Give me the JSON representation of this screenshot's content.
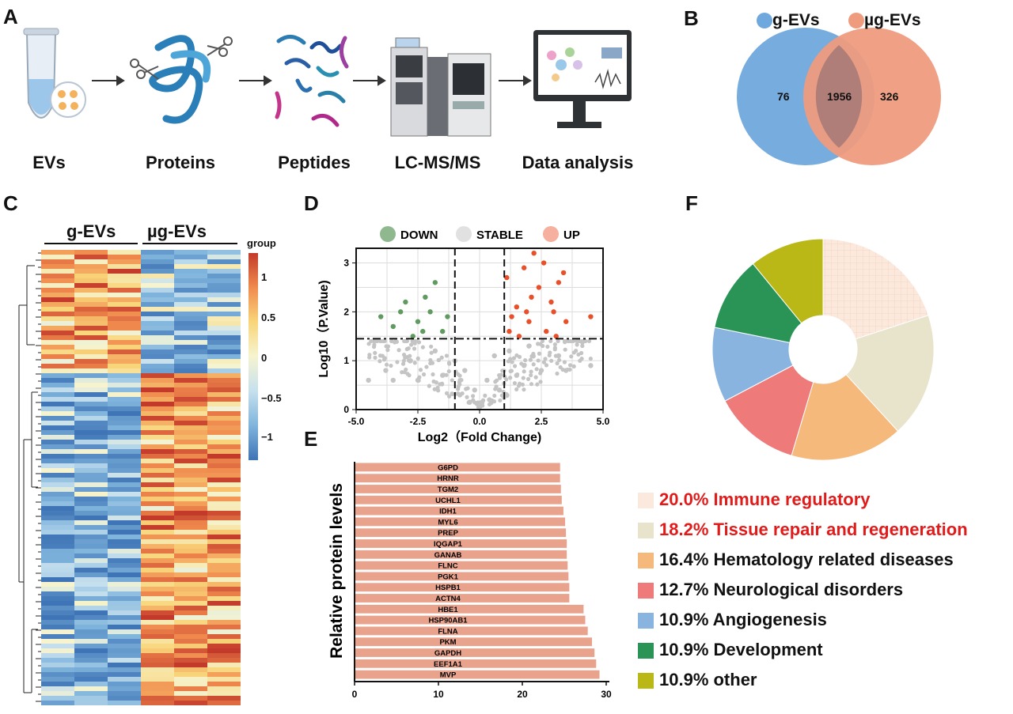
{
  "panels": {
    "A": "A",
    "B": "B",
    "C": "C",
    "D": "D",
    "E": "E",
    "F": "F"
  },
  "workflow": {
    "steps": [
      "EVs",
      "Proteins",
      "Peptides",
      "LC-MS/MS",
      "Data analysis"
    ]
  },
  "venn": {
    "legend": [
      "g-EVs",
      "µg-EVs"
    ],
    "left_only": "76",
    "overlap": "1956",
    "right_only": "326",
    "colors": {
      "left": "#6fa8dc",
      "right": "#ee9b7e",
      "overlap": "#b07e78"
    }
  },
  "heatmap": {
    "groups": [
      "g-EVs",
      "µg-EVs"
    ],
    "scale_title": "group",
    "scale_ticks": [
      "1",
      "0.5",
      "0",
      "−0.5",
      "−1"
    ]
  },
  "chart_data": [
    {
      "type": "scatter",
      "panel": "D",
      "xlabel": "Log2（Fold Change)",
      "ylabel": "Log10（P.Value)",
      "xlim": [
        -5.0,
        5.0
      ],
      "ylim": [
        0,
        3.3
      ],
      "xticks": [
        "-5.0",
        "-2.5",
        "0.0",
        "2.5",
        "5.0"
      ],
      "yticks": [
        "0",
        "1",
        "2",
        "3"
      ],
      "legend": [
        "DOWN",
        "STABLE",
        "UP"
      ],
      "colors": {
        "DOWN": "#5f9a5f",
        "STABLE": "#c4c4c4",
        "UP": "#e8502a"
      },
      "thresholds": {
        "x": [
          -1.0,
          1.0
        ],
        "y": 1.45
      },
      "series": [
        {
          "name": "UP",
          "points": [
            [
              1.2,
              1.6
            ],
            [
              1.5,
              2.1
            ],
            [
              2.0,
              1.8
            ],
            [
              2.4,
              2.5
            ],
            [
              1.8,
              2.9
            ],
            [
              2.2,
              3.2
            ],
            [
              3.0,
              2.0
            ],
            [
              3.5,
              1.8
            ],
            [
              4.5,
              1.9
            ],
            [
              1.1,
              2.7
            ],
            [
              2.7,
              1.6
            ],
            [
              3.2,
              2.6
            ],
            [
              1.6,
              1.5
            ],
            [
              2.9,
              2.2
            ],
            [
              3.4,
              2.8
            ],
            [
              2.1,
              2.3
            ],
            [
              1.3,
              1.9
            ],
            [
              2.6,
              3.0
            ],
            [
              3.1,
              1.5
            ],
            [
              1.9,
              2.0
            ]
          ]
        },
        {
          "name": "DOWN",
          "points": [
            [
              -1.5,
              1.6
            ],
            [
              -2.0,
              2.0
            ],
            [
              -2.5,
              1.8
            ],
            [
              -2.2,
              2.3
            ],
            [
              -3.0,
              2.2
            ],
            [
              -3.5,
              1.7
            ],
            [
              -4.0,
              1.9
            ],
            [
              -1.8,
              2.6
            ],
            [
              -2.7,
              1.5
            ],
            [
              -1.3,
              1.9
            ],
            [
              -2.3,
              1.6
            ],
            [
              -3.2,
              2.0
            ]
          ]
        },
        {
          "name": "STABLE",
          "points": [
            [
              -4.5,
              0.6
            ],
            [
              -3.5,
              0.6
            ],
            [
              -2.5,
              0.6
            ],
            [
              -1.5,
              0.7
            ],
            [
              -0.8,
              0.3
            ],
            [
              -0.4,
              0.15
            ],
            [
              0.0,
              0.05
            ],
            [
              0.4,
              0.2
            ],
            [
              0.8,
              0.4
            ],
            [
              1.5,
              0.7
            ],
            [
              2.5,
              0.8
            ],
            [
              3.5,
              0.8
            ],
            [
              4.5,
              0.9
            ],
            [
              -1.0,
              1.0
            ],
            [
              -0.6,
              0.8
            ],
            [
              0.6,
              1.1
            ],
            [
              1.2,
              1.2
            ],
            [
              -1.8,
              1.2
            ],
            [
              2.0,
              1.3
            ],
            [
              -2.8,
              1.0
            ],
            [
              3.2,
              1.1
            ],
            [
              0.3,
              0.6
            ],
            [
              -0.2,
              0.4
            ],
            [
              1.8,
              0.9
            ],
            [
              -3.8,
              0.8
            ]
          ]
        }
      ]
    },
    {
      "type": "bar",
      "panel": "E",
      "orientation": "horizontal",
      "ylabel": "Relative protein levels",
      "xlim": [
        0,
        30
      ],
      "xticks": [
        "0",
        "10",
        "20",
        "30"
      ],
      "color": "#e9a38c",
      "categories": [
        "G6PD",
        "HRNR",
        "TGM2",
        "UCHL1",
        "IDH1",
        "MYL6",
        "PREP",
        "IQGAP1",
        "GANAB",
        "FLNC",
        "PGK1",
        "HSPB1",
        "ACTN4",
        "HBE1",
        "HSP90AB1",
        "FLNA",
        "PKM",
        "GAPDH",
        "EEF1A1",
        "MVP"
      ],
      "values": [
        24.5,
        24.5,
        24.6,
        24.7,
        24.9,
        25.1,
        25.2,
        25.3,
        25.3,
        25.4,
        25.5,
        25.6,
        25.6,
        27.3,
        27.5,
        27.8,
        28.3,
        28.6,
        28.8,
        29.2
      ]
    },
    {
      "type": "pie",
      "panel": "F",
      "donut": true,
      "categories": [
        "Immune regulatory",
        "Tissue repair and regeneration",
        "Hematology related diseases",
        "Neurological disorders",
        "Angiogenesis",
        "Development",
        "other"
      ],
      "values": [
        20.0,
        18.2,
        16.4,
        12.7,
        10.9,
        10.9,
        10.9
      ],
      "labels": [
        "20.0% Immune regulatory",
        "18.2% Tissue repair and regeneration",
        "16.4% Hematology related diseases",
        "12.7% Neurological disorders",
        "10.9% Angiogenesis",
        "10.9% Development",
        "10.9% other"
      ],
      "colors": [
        "#fbe9de",
        "#e8e4cc",
        "#f5b97c",
        "#ee7a7a",
        "#8ab4e0",
        "#2a9457",
        "#b9b816"
      ],
      "label_colors": [
        "#e11a1a",
        "#e11a1a",
        "#111111",
        "#111111",
        "#111111",
        "#111111",
        "#111111"
      ]
    }
  ]
}
